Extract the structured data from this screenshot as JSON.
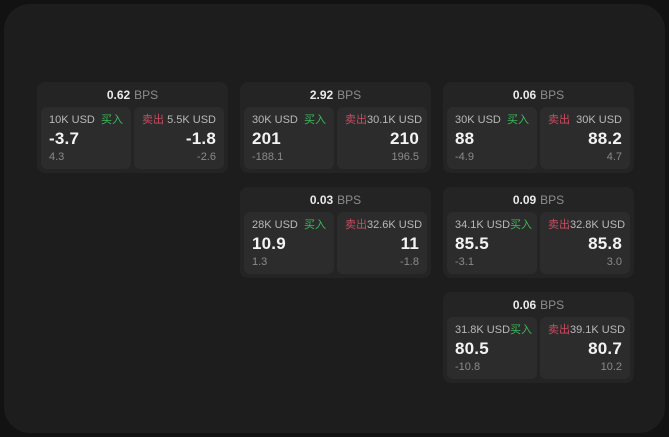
{
  "window": {
    "bps_unit": "BPS",
    "buy_label": "买入",
    "sell_label": "卖出",
    "colors": {
      "page_bg": "#1d1d1d",
      "outer_bg": "#121212",
      "card_bg": "#242424",
      "panel_bg": "#2c2c2c",
      "buy_green": "#3cb95d",
      "sell_red": "#c94b62"
    }
  },
  "cards": [
    {
      "bps": "0.62",
      "col": 1,
      "row": 1,
      "buy": {
        "amount": "10K USD",
        "price": "-3.7",
        "delta": "4.3"
      },
      "sell": {
        "amount": "5.5K USD",
        "price": "-1.8",
        "delta": "-2.6"
      }
    },
    {
      "bps": "2.92",
      "col": 2,
      "row": 1,
      "buy": {
        "amount": "30K USD",
        "price": "201",
        "delta": "-188.1"
      },
      "sell": {
        "amount": "30.1K USD",
        "price": "210",
        "delta": "196.5"
      }
    },
    {
      "bps": "0.06",
      "col": 3,
      "row": 1,
      "buy": {
        "amount": "30K USD",
        "price": "88",
        "delta": "-4.9"
      },
      "sell": {
        "amount": "30K USD",
        "price": "88.2",
        "delta": "4.7"
      }
    },
    {
      "bps": "0.03",
      "col": 2,
      "row": 2,
      "buy": {
        "amount": "28K USD",
        "price": "10.9",
        "delta": "1.3"
      },
      "sell": {
        "amount": "32.6K USD",
        "price": "11",
        "delta": "-1.8"
      }
    },
    {
      "bps": "0.09",
      "col": 3,
      "row": 2,
      "buy": {
        "amount": "34.1K USD",
        "price": "85.5",
        "delta": "-3.1"
      },
      "sell": {
        "amount": "32.8K USD",
        "price": "85.8",
        "delta": "3.0"
      }
    },
    {
      "bps": "0.06",
      "col": 3,
      "row": 3,
      "buy": {
        "amount": "31.8K USD",
        "price": "80.5",
        "delta": "-10.8"
      },
      "sell": {
        "amount": "39.1K USD",
        "price": "80.7",
        "delta": "10.2"
      }
    }
  ]
}
